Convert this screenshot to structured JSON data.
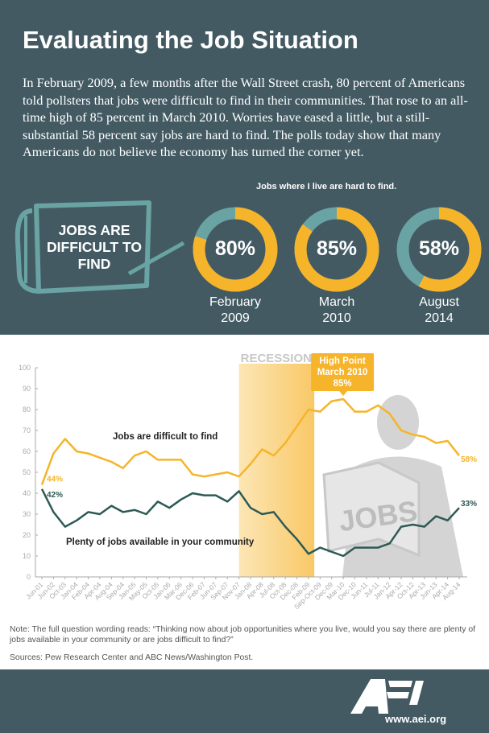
{
  "header": {
    "title": "Evaluating the Job Situation",
    "intro": "In February 2009, a few months after the Wall Street crash, 80 percent of Americans told pollsters that jobs were difficult to find in their communities. That rose to an all-time high of 85 percent in March 2010. Worries have eased a little, but a still-substantial 58 percent say jobs are hard to find. The polls today show that many Americans do not believe the economy has turned the corner yet."
  },
  "sign": {
    "text": "JOBS ARE DIFFICULT TO FIND"
  },
  "donuts": {
    "heading": "Jobs where I live are hard to find.",
    "items": [
      {
        "value": 80,
        "label": "80%",
        "line1": "February",
        "line2": "2009"
      },
      {
        "value": 85,
        "label": "85%",
        "line1": "March",
        "line2": "2010"
      },
      {
        "value": 58,
        "label": "58%",
        "line1": "August",
        "line2": "2014"
      }
    ]
  },
  "colors": {
    "background": "#435a63",
    "yellow": "#f6b42a",
    "teal": "#6aa3a3",
    "dark_green": "#2e5a55",
    "recession": "#fbd98a"
  },
  "chart_data": {
    "type": "line",
    "categories": [
      "Jun-01",
      "Jun-02",
      "Oct-03",
      "Jan-04",
      "Feb-04",
      "Apr-04",
      "Aug-04",
      "Sep-04",
      "Jan-05",
      "May-05",
      "Oct-05",
      "Jan-06",
      "Mar-06",
      "Dec-06",
      "Feb-07",
      "Jun-07",
      "Sep-07",
      "Nov-07",
      "Jan-08",
      "Apr-08",
      "Jul-08",
      "Oct-08",
      "Dec-08",
      "Feb-09",
      "Sep-Oct-09",
      "Dec-09",
      "Mar-10",
      "Dec-10",
      "Jun-11",
      "Jul-11",
      "Jan-12",
      "Apr-12",
      "Oct-12",
      "Apr-13",
      "Jun-13",
      "Apr-14",
      "Aug-14"
    ],
    "series": [
      {
        "name": "Jobs are difficult to find",
        "color": "#f6b42a",
        "values": [
          44,
          59,
          66,
          60,
          59,
          57,
          55,
          52,
          58,
          60,
          56,
          56,
          56,
          49,
          48,
          49,
          50,
          48,
          54,
          61,
          58,
          64,
          72,
          80,
          79,
          84,
          85,
          79,
          79,
          82,
          78,
          70,
          68,
          67,
          64,
          65,
          58
        ],
        "start_label": "44%",
        "end_label": "58%"
      },
      {
        "name": "Plenty of jobs available in your community",
        "color": "#2e5a55",
        "values": [
          42,
          31,
          24,
          27,
          31,
          30,
          34,
          31,
          32,
          30,
          36,
          33,
          37,
          40,
          39,
          39,
          36,
          41,
          33,
          30,
          31,
          24,
          18,
          11,
          14,
          12,
          10,
          14,
          14,
          14,
          16,
          24,
          25,
          24,
          29,
          27,
          33
        ],
        "start_label": "42%",
        "end_label": "33%"
      }
    ],
    "yticks": [
      0,
      10,
      20,
      30,
      40,
      50,
      60,
      70,
      80,
      90,
      100
    ],
    "ylim": [
      0,
      100
    ],
    "grid": false,
    "recession": {
      "label": "RECESSION",
      "from": "Nov-07",
      "to": "Feb-09"
    },
    "annotation": {
      "line1": "High Point",
      "line2": "March 2010",
      "line3": "85%",
      "at": "Mar-10"
    },
    "illustration_text": "JOBS"
  },
  "note": "Note: The full question wording reads: “Thinking now about job opportunities where you live, would you say there are plenty of jobs available in your community or are jobs difficult to find?”",
  "sources": "Sources: Pew Research Center and ABC News/Washington Post.",
  "footer": {
    "logo": "AEI",
    "url": "www.aei.org"
  }
}
